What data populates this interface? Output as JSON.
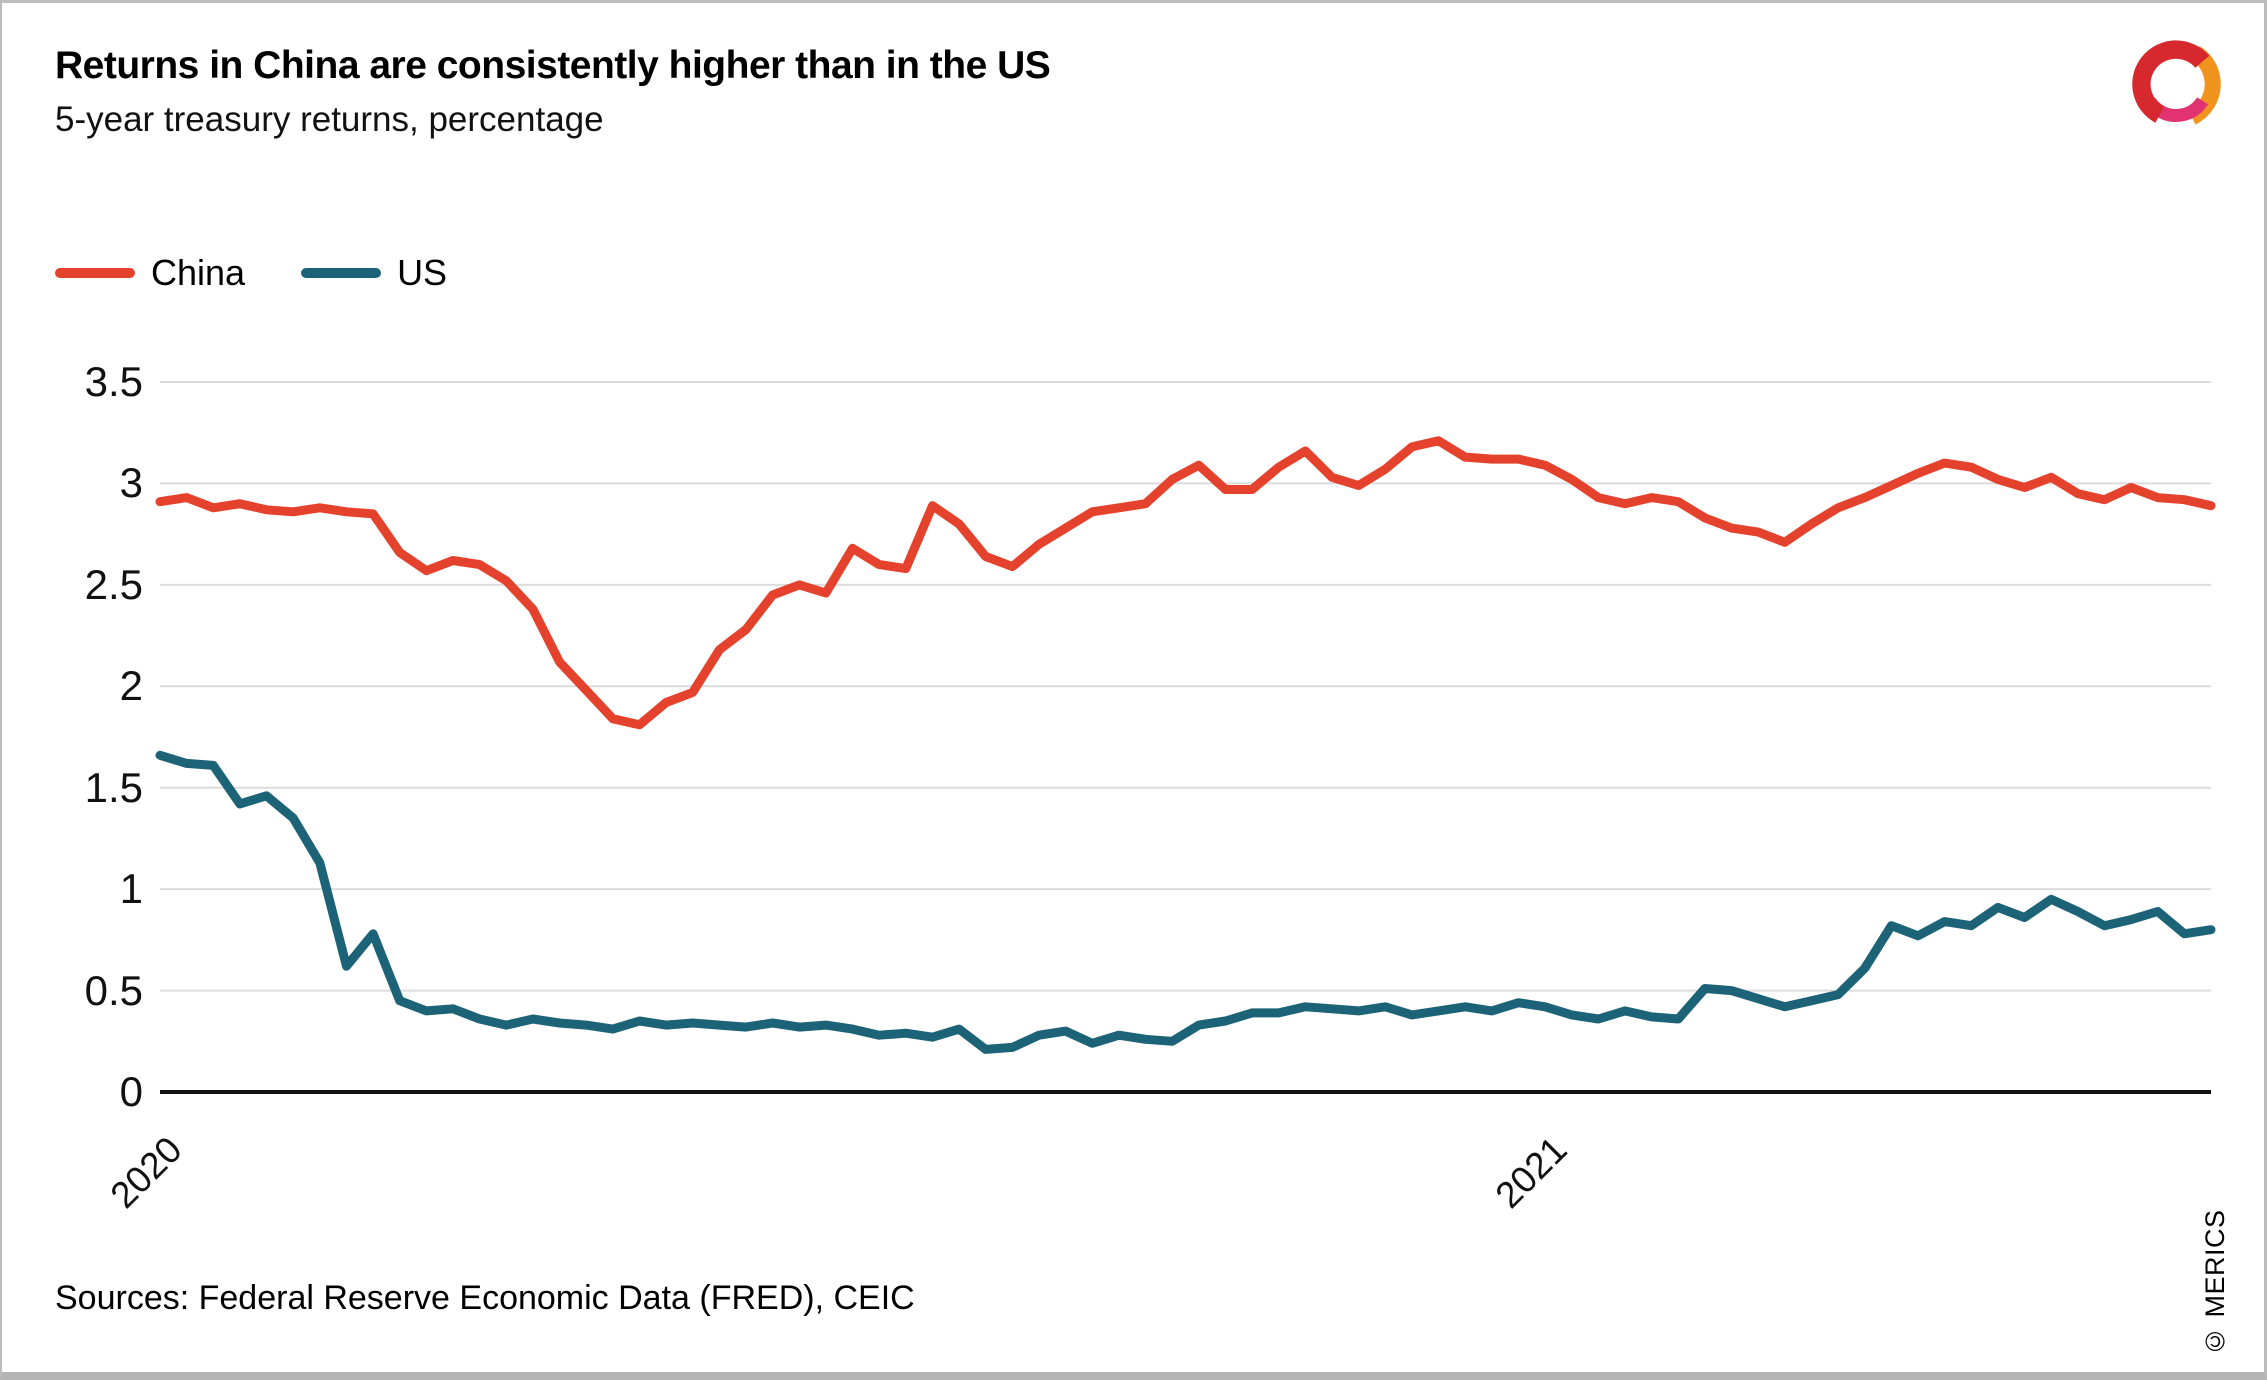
{
  "header": {
    "title": "Returns in China are consistently higher than in the US",
    "subtitle": "5-year treasury returns, percentage"
  },
  "legend": {
    "items": [
      {
        "label": "China",
        "color": "#e5422d"
      },
      {
        "label": "US",
        "color": "#1d6377"
      }
    ]
  },
  "footer": {
    "sources": "Sources: Federal Reserve Economic Data (FRED), CEIC",
    "copyright": "© MERICS"
  },
  "logo": {
    "name": "merics-logo",
    "colors": {
      "red": "#d7282d",
      "magenta": "#e0336f",
      "orange": "#f0941d"
    }
  },
  "chart_data": {
    "type": "line",
    "title": "Returns in China are consistently higher than in the US",
    "subtitle": "5-year treasury returns, percentage",
    "xlabel": "",
    "ylabel": "",
    "ylim": [
      0,
      3.5
    ],
    "grid": true,
    "gridline_color": "#dcdcdc",
    "axis_color": "#111111",
    "legend_position": "top-left",
    "x_unit": "weekly observations, Jan 2020 through mid-2021",
    "yticks": [
      0,
      0.5,
      1,
      1.5,
      2,
      2.5,
      3,
      3.5
    ],
    "ytick_labels": [
      "0",
      "0.5",
      "1",
      "1.5",
      "2",
      "2.5",
      "3",
      "3.5"
    ],
    "x_ticks": [
      {
        "label": "2020",
        "index": 0
      },
      {
        "label": "2021",
        "index": 52
      }
    ],
    "series": [
      {
        "name": "China",
        "color": "#e5422d",
        "values": [
          2.91,
          2.93,
          2.88,
          2.9,
          2.87,
          2.86,
          2.88,
          2.86,
          2.85,
          2.66,
          2.57,
          2.62,
          2.6,
          2.52,
          2.38,
          2.12,
          1.98,
          1.84,
          1.81,
          1.92,
          1.97,
          2.18,
          2.28,
          2.45,
          2.5,
          2.46,
          2.68,
          2.6,
          2.58,
          2.89,
          2.8,
          2.64,
          2.59,
          2.7,
          2.78,
          2.86,
          2.88,
          2.9,
          3.02,
          3.09,
          2.97,
          2.97,
          3.08,
          3.16,
          3.03,
          2.99,
          3.07,
          3.18,
          3.21,
          3.13,
          3.12,
          3.12,
          3.09,
          3.02,
          2.93,
          2.9,
          2.93,
          2.91,
          2.83,
          2.78,
          2.76,
          2.71,
          2.8,
          2.88,
          2.93,
          2.99,
          3.05,
          3.1,
          3.08,
          3.02,
          2.98,
          3.03,
          2.95,
          2.92,
          2.98,
          2.93,
          2.92,
          2.89
        ]
      },
      {
        "name": "US",
        "color": "#1d6377",
        "values": [
          1.66,
          1.62,
          1.61,
          1.42,
          1.46,
          1.35,
          1.13,
          0.62,
          0.78,
          0.45,
          0.4,
          0.41,
          0.36,
          0.33,
          0.36,
          0.34,
          0.33,
          0.31,
          0.35,
          0.33,
          0.34,
          0.33,
          0.32,
          0.34,
          0.32,
          0.33,
          0.31,
          0.28,
          0.29,
          0.27,
          0.31,
          0.21,
          0.22,
          0.28,
          0.3,
          0.24,
          0.28,
          0.26,
          0.25,
          0.33,
          0.35,
          0.39,
          0.39,
          0.42,
          0.41,
          0.4,
          0.42,
          0.38,
          0.4,
          0.42,
          0.4,
          0.44,
          0.42,
          0.38,
          0.36,
          0.4,
          0.37,
          0.36,
          0.51,
          0.5,
          0.46,
          0.42,
          0.45,
          0.48,
          0.61,
          0.82,
          0.77,
          0.84,
          0.82,
          0.91,
          0.86,
          0.95,
          0.89,
          0.82,
          0.85,
          0.89,
          0.78,
          0.8
        ]
      }
    ]
  }
}
